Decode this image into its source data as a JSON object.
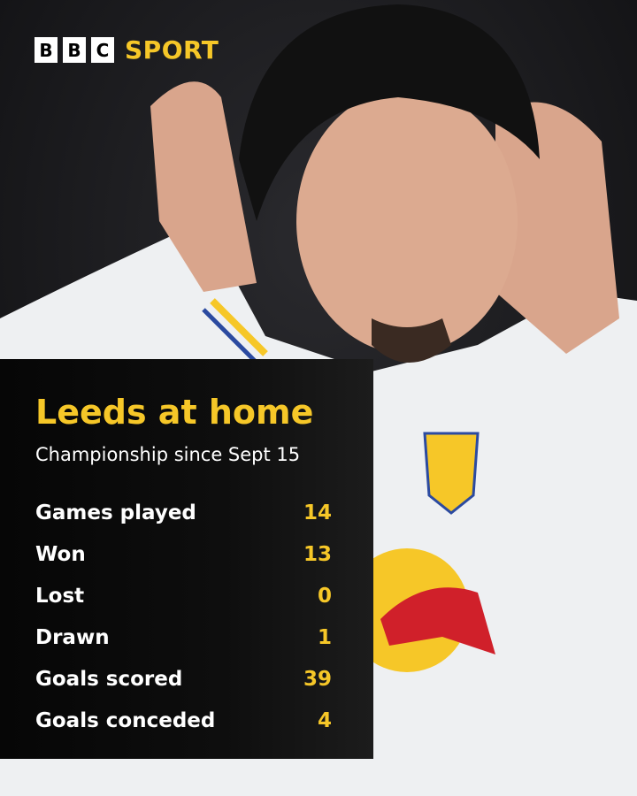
{
  "brand": {
    "letters": [
      "B",
      "B",
      "C"
    ],
    "sport": "SPORT",
    "accent": "#f6c728"
  },
  "panel": {
    "title": "Leeds at home",
    "subtitle": "Championship since Sept 15",
    "stats": [
      {
        "label": "Games played",
        "value": "14"
      },
      {
        "label": "Won",
        "value": "13"
      },
      {
        "label": "Lost",
        "value": "0"
      },
      {
        "label": "Drawn",
        "value": "1"
      },
      {
        "label": "Goals scored",
        "value": "39"
      },
      {
        "label": "Goals conceded",
        "value": "4"
      }
    ]
  }
}
